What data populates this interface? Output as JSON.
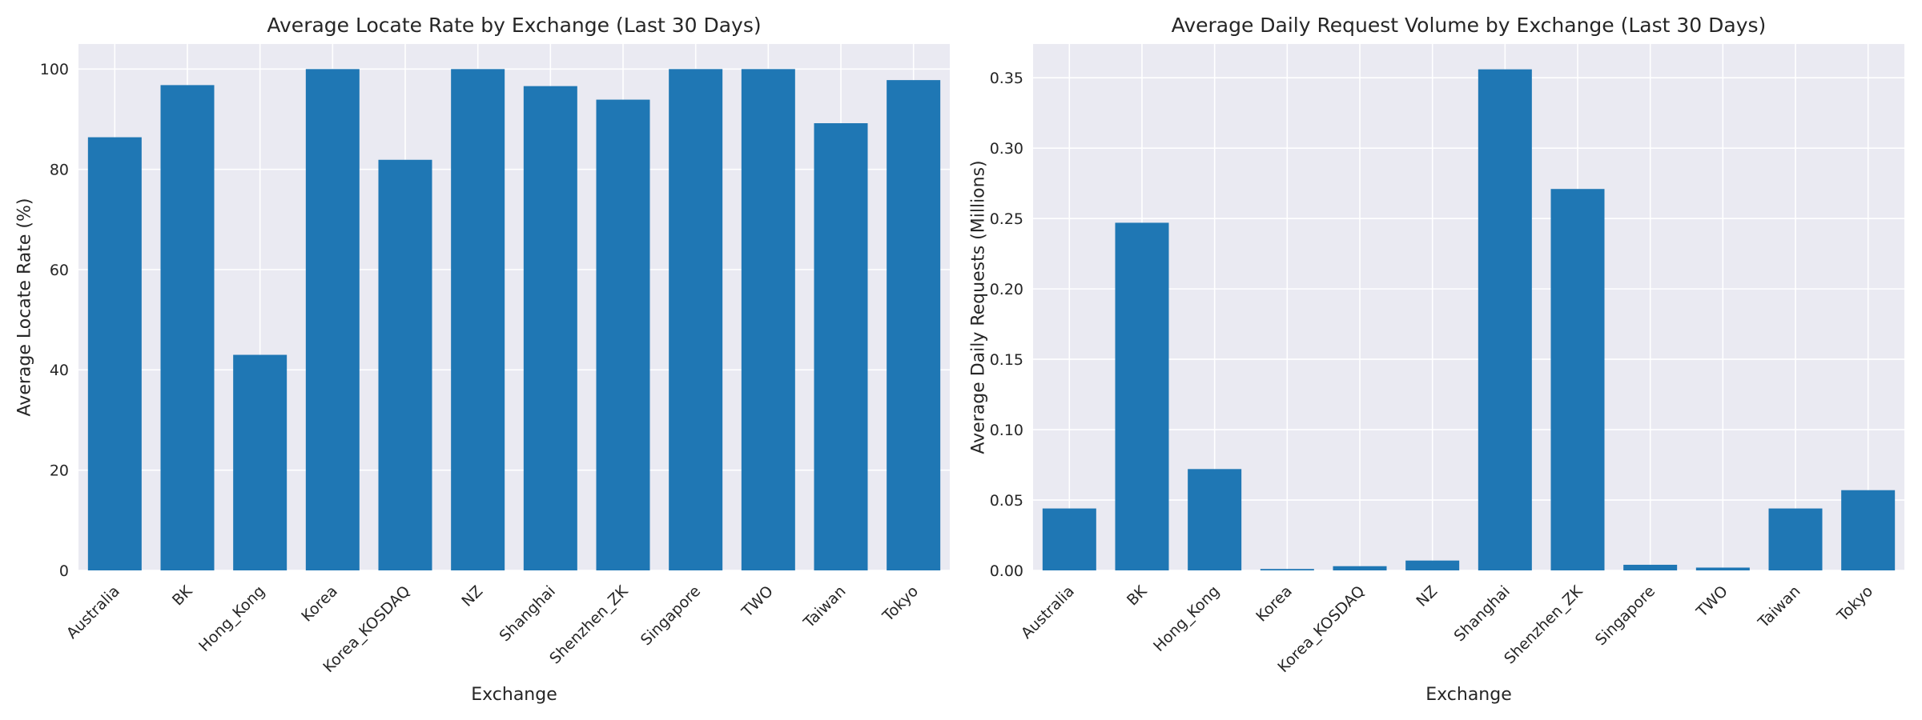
{
  "figure": {
    "background_color": "#ffffff",
    "text_color": "#262626"
  },
  "chart_data": [
    {
      "type": "bar",
      "title": "Average Locate Rate by Exchange (Last 30 Days)",
      "xlabel": "Exchange",
      "ylabel": "Average Locate Rate (%)",
      "categories": [
        "Australia",
        "BK",
        "Hong_Kong",
        "Korea",
        "Korea_KOSDAQ",
        "NZ",
        "Shanghai",
        "Shenzhen_ZK",
        "Singapore",
        "TWO",
        "Taiwan",
        "Tokyo"
      ],
      "values": [
        86.4,
        96.8,
        43.0,
        100.0,
        81.9,
        100.0,
        96.6,
        93.9,
        100.0,
        100.0,
        89.2,
        97.8
      ],
      "ylim": [
        0,
        105
      ],
      "yticks": [
        0,
        20,
        40,
        60,
        80,
        100
      ],
      "ytick_labels": [
        "0",
        "20",
        "40",
        "60",
        "80",
        "100"
      ],
      "xtick_rotation_deg": 45,
      "grid": true,
      "legend": "none",
      "bar_color": "#1f77b4",
      "plot_bg_color": "#eaeaf2",
      "grid_color": "#ffffff"
    },
    {
      "type": "bar",
      "title": "Average Daily Request Volume by Exchange (Last 30 Days)",
      "xlabel": "Exchange",
      "ylabel": "Average Daily Requests (Millions)",
      "categories": [
        "Australia",
        "BK",
        "Hong_Kong",
        "Korea",
        "Korea_KOSDAQ",
        "NZ",
        "Shanghai",
        "Shenzhen_ZK",
        "Singapore",
        "TWO",
        "Taiwan",
        "Tokyo"
      ],
      "values": [
        0.044,
        0.247,
        0.072,
        0.001,
        0.003,
        0.007,
        0.356,
        0.271,
        0.004,
        0.002,
        0.044,
        0.057
      ],
      "ylim": [
        0,
        0.374
      ],
      "yticks": [
        0,
        0.05,
        0.1,
        0.15,
        0.2,
        0.25,
        0.3,
        0.35
      ],
      "ytick_labels": [
        "0.00",
        "0.05",
        "0.10",
        "0.15",
        "0.20",
        "0.25",
        "0.30",
        "0.35"
      ],
      "xtick_rotation_deg": 45,
      "grid": true,
      "legend": "none",
      "bar_color": "#1f77b4",
      "plot_bg_color": "#eaeaf2",
      "grid_color": "#ffffff"
    }
  ]
}
